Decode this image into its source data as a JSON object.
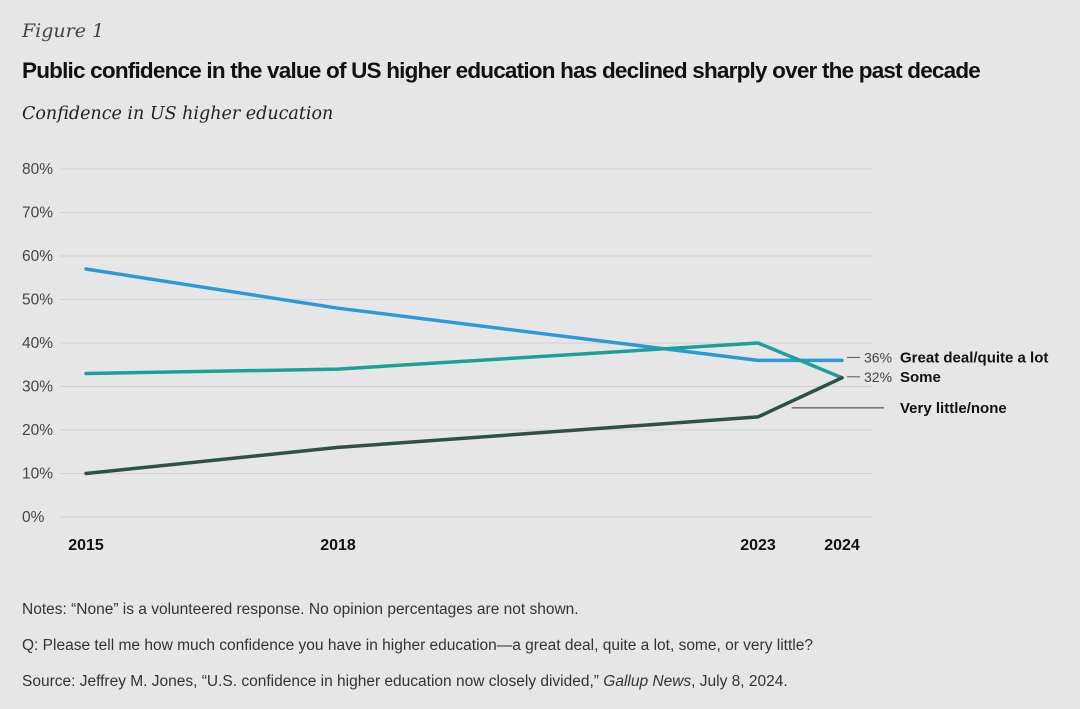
{
  "header": {
    "figure_label": "Figure 1",
    "title": "Public confidence in the value of US higher education has declined sharply over the past decade",
    "subtitle": "Confidence in US higher education"
  },
  "chart_data": {
    "type": "line",
    "title": "Public confidence in the value of US higher education has declined sharply over the past decade",
    "subtitle": "Confidence in US higher education",
    "x": [
      2015,
      2018,
      2023,
      2024
    ],
    "x_tick_labels": [
      "2015",
      "2018",
      "2023",
      "2024"
    ],
    "y_tick_labels": [
      "0%",
      "10%",
      "20%",
      "30%",
      "40%",
      "50%",
      "60%",
      "70%",
      "80%"
    ],
    "ylim": [
      0,
      80
    ],
    "y_unit": "%",
    "grid": "horizontal",
    "legend": "direct labels at right",
    "series": [
      {
        "name": "Great deal/quite a lot",
        "values": [
          57,
          48,
          36,
          36
        ],
        "color": "#2a9ad6",
        "end_label": "36%"
      },
      {
        "name": "Some",
        "values": [
          33,
          34,
          40,
          32
        ],
        "color": "#1ea09a",
        "end_label": "32%"
      },
      {
        "name": "Very little/none",
        "values": [
          10,
          16,
          23,
          32
        ],
        "color": "#2f4f47",
        "end_label": ""
      }
    ]
  },
  "notes": {
    "note": "Notes: “None” is a volunteered response. No opinion percentages are not shown.",
    "question": "Q: Please tell me how much confidence you have in higher education—a great deal, quite a lot, some, or very little?",
    "source_prefix": "Source: Jeffrey M. Jones, “U.S. confidence in higher education now closely divided,” ",
    "source_publication": "Gallup News",
    "source_suffix": ", July 8, 2024."
  }
}
